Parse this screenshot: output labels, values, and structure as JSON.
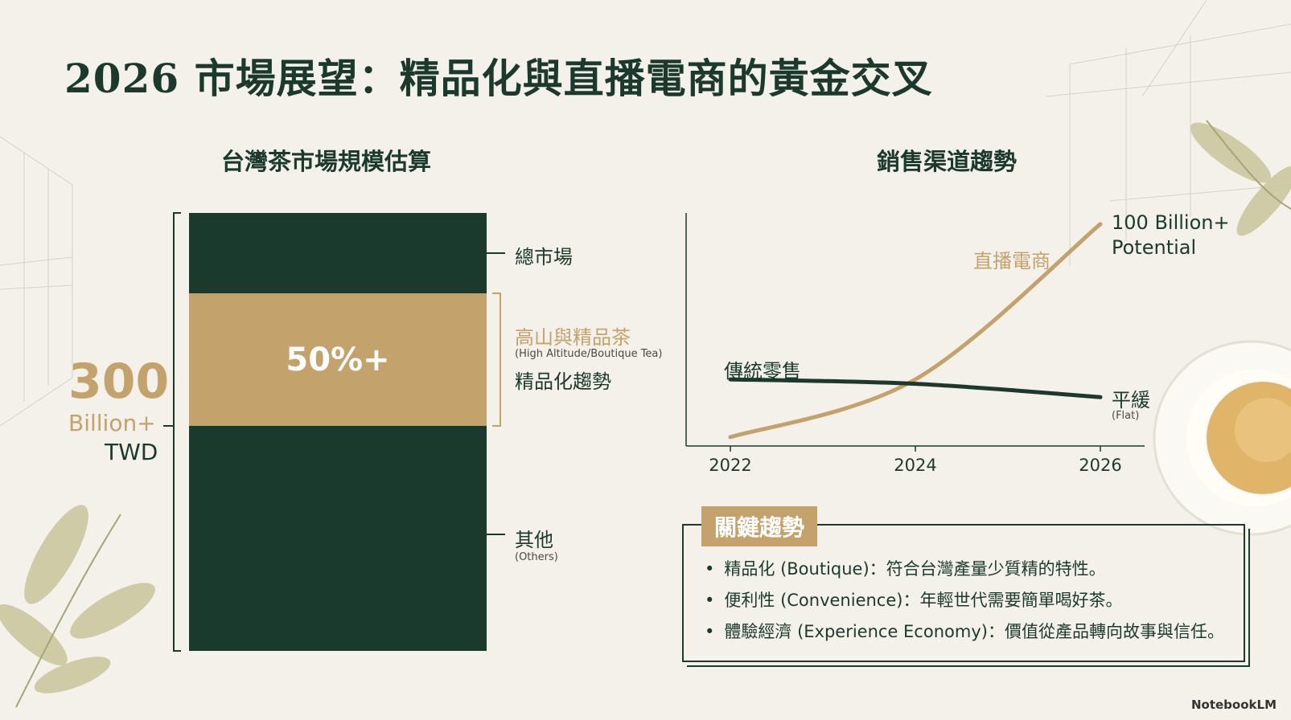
{
  "title": "2026 市場展望：精品化與直播電商的黃金交叉",
  "brand": "NotebookLM",
  "colors": {
    "dark_green": "#1a3a2d",
    "gold": "#c4a26b",
    "background": "#f3f1ea"
  },
  "chart_data": [
    {
      "type": "bar",
      "title": "台灣茶市場規模估算",
      "total": {
        "value": "300",
        "unit": "Billion+",
        "currency": "TWD"
      },
      "segments": [
        {
          "label": "總市場"
        },
        {
          "label": "高山與精品茶",
          "sublabel": "(High Altitude/Boutique Tea)",
          "trend_label": "精品化趨勢",
          "share_label": "50%+"
        },
        {
          "label": "其他",
          "sublabel": "(Others)"
        }
      ]
    },
    {
      "type": "line",
      "title": "銷售渠道趨勢",
      "x": [
        2022,
        2024,
        2026
      ],
      "x_tick_labels": [
        "2022",
        "2024",
        "2026"
      ],
      "series": [
        {
          "name": "直播電商",
          "values": [
            0.4,
            3.0,
            10.0
          ],
          "color": "#c4a26b",
          "end_label": "100 Billion+",
          "end_label_2": "Potential"
        },
        {
          "name": "傳統零售",
          "values": [
            3.0,
            2.8,
            2.2
          ],
          "color": "#1b3a2d",
          "end_label": "平緩",
          "end_label_2": "(Flat)"
        }
      ],
      "ylim": [
        0,
        10.5
      ]
    }
  ],
  "key_trends": {
    "header": "關鍵趨勢",
    "items": [
      "精品化 (Boutique)：符合台灣產量少質精的特性。",
      "便利性 (Convenience)：年輕世代需要簡單喝好茶。",
      "體驗經濟 (Experience Economy)：價值從產品轉向故事與信任。"
    ]
  }
}
